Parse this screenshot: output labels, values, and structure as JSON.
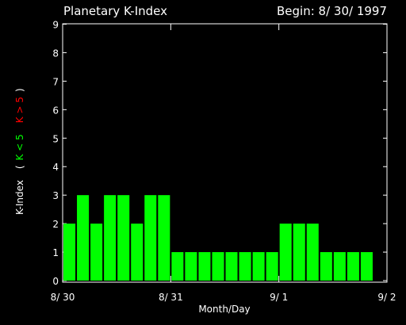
{
  "header": {
    "title": "Planetary K-Index",
    "begin": "Begin: 8/ 30/ 1997"
  },
  "colors": {
    "background": "#000000",
    "axis": "#ffffff",
    "bar": "#00ff00",
    "k_low_label": "#00ff00",
    "k_high_label": "#ff0000"
  },
  "chart_data": {
    "type": "bar",
    "title": "Planetary K-Index",
    "subtitle": "Begin: 8/ 30/ 1997",
    "xlabel": "Month/Day",
    "ylabel": {
      "prefix": "K-Index",
      "open": "(",
      "low": "K < 5",
      "high": "K > 5",
      "close": ")"
    },
    "ylim": [
      0,
      9
    ],
    "yticks": [
      0,
      1,
      2,
      3,
      4,
      5,
      6,
      7,
      8,
      9
    ],
    "x_tick_labels": [
      "8/ 30",
      "8/ 31",
      "9/ 1",
      "9/ 2"
    ],
    "bars_per_day": 8,
    "days": 3,
    "values": [
      2,
      3,
      2,
      3,
      3,
      2,
      3,
      3,
      1,
      1,
      1,
      1,
      1,
      1,
      1,
      1,
      2,
      2,
      2,
      1,
      1,
      1,
      1
    ],
    "grid": false
  }
}
